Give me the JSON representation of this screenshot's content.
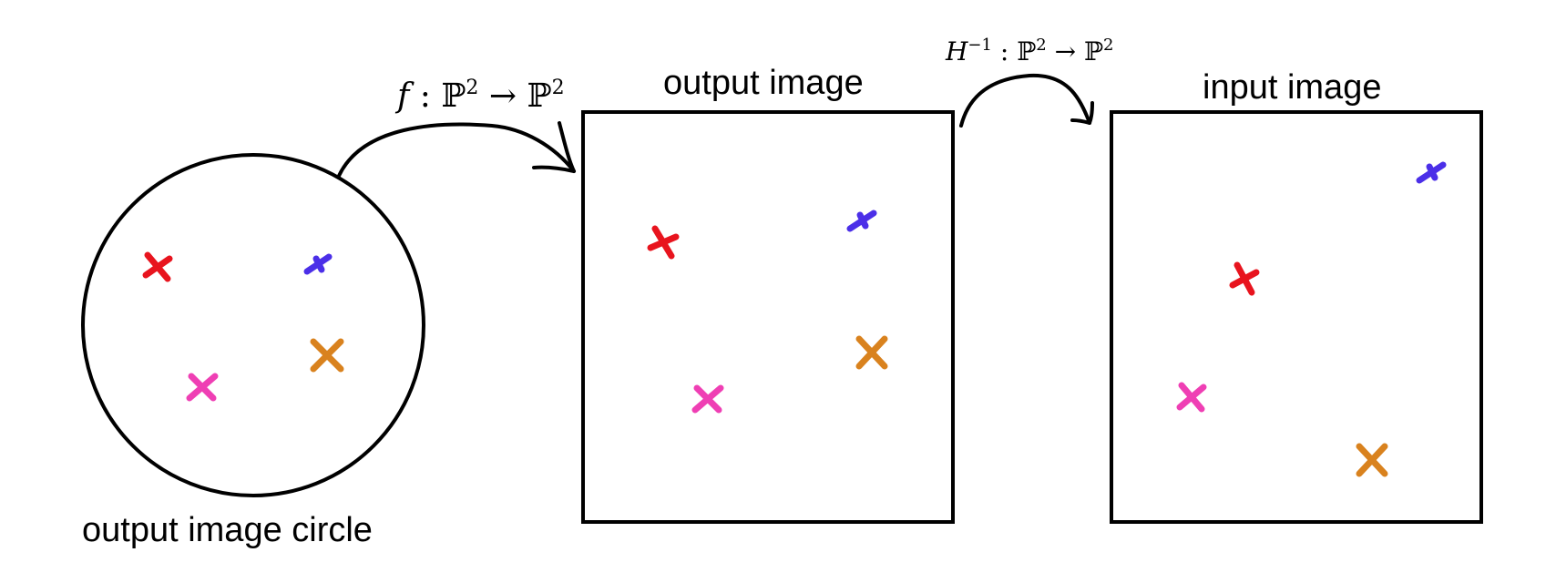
{
  "panels": {
    "circle": {
      "label": "output image circle"
    },
    "output": {
      "label": "output image"
    },
    "input": {
      "label": "input image"
    }
  },
  "arrows": {
    "forward": {
      "fn": "f",
      "sep": " : ",
      "domain": "ℙ",
      "dom_exp": "2",
      "to": " → ",
      "codomain": "ℙ",
      "cod_exp": "2"
    },
    "inverse": {
      "fn": "H",
      "fn_exp": "−1",
      "sep": " : ",
      "domain": "ℙ",
      "dom_exp": "2",
      "to": " → ",
      "codomain": "ℙ",
      "cod_exp": "2"
    }
  },
  "colors": {
    "red": "#e8141e",
    "blue": "#4b2fe8",
    "orange": "#d9821e",
    "pink": "#ef3fb4"
  }
}
